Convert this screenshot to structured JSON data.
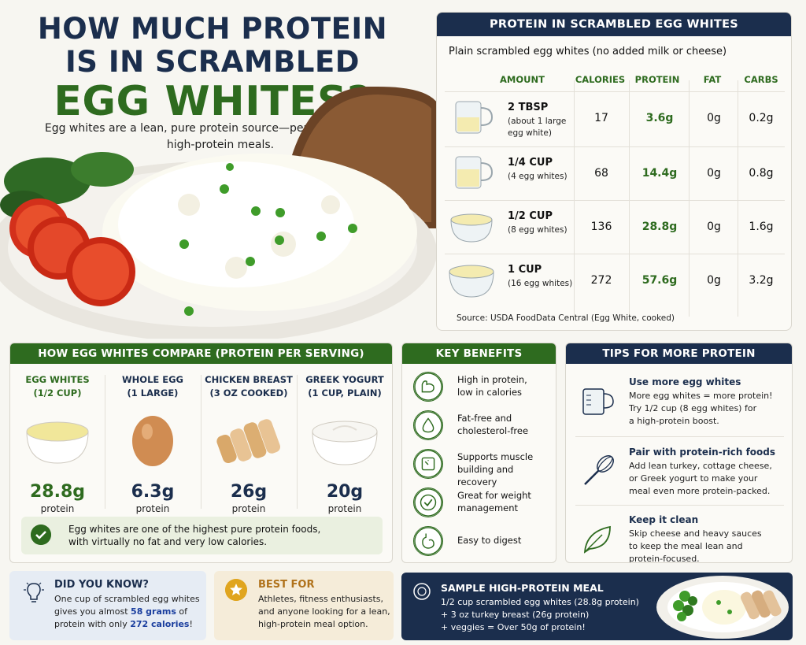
{
  "hero": {
    "title_line1": "HOW MUCH PROTEIN",
    "title_line2": "IS IN SCRAMBLED",
    "title_line3": "EGG WHITES?",
    "subtitle": "Egg whites are a lean, pure protein source—perfect for healthy, high-protein meals."
  },
  "protein_table": {
    "title": "PROTEIN IN SCRAMBLED EGG WHITES",
    "subtitle": "Plain scrambled egg whites (no added milk or cheese)",
    "columns": [
      "AMOUNT",
      "CALORIES",
      "PROTEIN",
      "FAT",
      "CARBS"
    ],
    "rows": [
      {
        "amount": "2 TBSP",
        "detail": "(about 1 large egg white)",
        "calories": "17",
        "protein": "3.6g",
        "fat": "0g",
        "carbs": "0.2g"
      },
      {
        "amount": "1/4 CUP",
        "detail": "(4 egg whites)",
        "calories": "68",
        "protein": "14.4g",
        "fat": "0g",
        "carbs": "0.8g"
      },
      {
        "amount": "1/2 CUP",
        "detail": "(8 egg whites)",
        "calories": "136",
        "protein": "28.8g",
        "fat": "0g",
        "carbs": "1.6g"
      },
      {
        "amount": "1 CUP",
        "detail": "(16 egg whites)",
        "calories": "272",
        "protein": "57.6g",
        "fat": "0g",
        "carbs": "3.2g"
      }
    ],
    "source": "Source: USDA FoodData Central (Egg White, cooked)"
  },
  "compare": {
    "title": "HOW EGG WHITES COMPARE (PROTEIN PER SERVING)",
    "items": [
      {
        "name_line1": "EGG WHITES",
        "name_line2": "(1/2 CUP)",
        "value": "28.8g",
        "unit": "protein"
      },
      {
        "name_line1": "WHOLE EGG",
        "name_line2": "(1 LARGE)",
        "value": "6.3g",
        "unit": "protein"
      },
      {
        "name_line1": "CHICKEN BREAST",
        "name_line2": "(3 OZ COOKED)",
        "value": "26g",
        "unit": "protein"
      },
      {
        "name_line1": "GREEK YOGURT",
        "name_line2": "(1 CUP, PLAIN)",
        "value": "20g",
        "unit": "protein"
      }
    ],
    "note_line1": "Egg whites are one of the highest pure protein foods,",
    "note_line2": "with virtually no fat and very low calories."
  },
  "benefits": {
    "title": "KEY BENEFITS",
    "items": [
      {
        "line1": "High in protein,",
        "line2": "low in calories",
        "icon": "bicep-icon"
      },
      {
        "line1": "Fat-free and",
        "line2": "cholesterol-free",
        "icon": "drop-icon"
      },
      {
        "line1": "Supports muscle",
        "line2": "building and recovery",
        "icon": "scale-icon"
      },
      {
        "line1": "Great for weight",
        "line2": "management",
        "icon": "check-icon"
      },
      {
        "line1": "Easy to digest",
        "line2": "",
        "icon": "stomach-icon"
      }
    ]
  },
  "tips": {
    "title": "TIPS FOR MORE PROTEIN",
    "items": [
      {
        "heading": "Use more egg whites",
        "l1": "More egg whites = more protein!",
        "l2": "Try 1/2 cup (8 egg whites) for",
        "l3": "a high-protein boost."
      },
      {
        "heading": "Pair with protein-rich foods",
        "l1": "Add lean turkey, cottage cheese,",
        "l2": "or Greek yogurt to make your",
        "l3": "meal even more protein-packed."
      },
      {
        "heading": "Keep it clean",
        "l1": "Skip cheese and heavy sauces",
        "l2": "to keep the meal lean and",
        "l3": "protein-focused."
      }
    ]
  },
  "did_you_know": {
    "title": "DID YOU KNOW?",
    "l1": "One cup of scrambled egg whites",
    "l2a": "gives you almost ",
    "l2b": "58 grams",
    "l2c": " of",
    "l3a": "protein with only ",
    "l3b": "272 calories",
    "l3c": "!"
  },
  "best_for": {
    "title": "BEST FOR",
    "l1": "Athletes, fitness enthusiasts,",
    "l2": "and anyone looking for a lean,",
    "l3": "high-protein meal option."
  },
  "sample_meal": {
    "title": "SAMPLE HIGH-PROTEIN MEAL",
    "l1": "1/2 cup scrambled egg whites (28.8g protein)",
    "l2": "+ 3 oz turkey breast (26g protein)",
    "l3": "+ veggies = Over 50g of protein!"
  },
  "colors": {
    "navy": "#1b2e4d",
    "green": "#2e6b1f",
    "gold": "#e0a51f"
  }
}
